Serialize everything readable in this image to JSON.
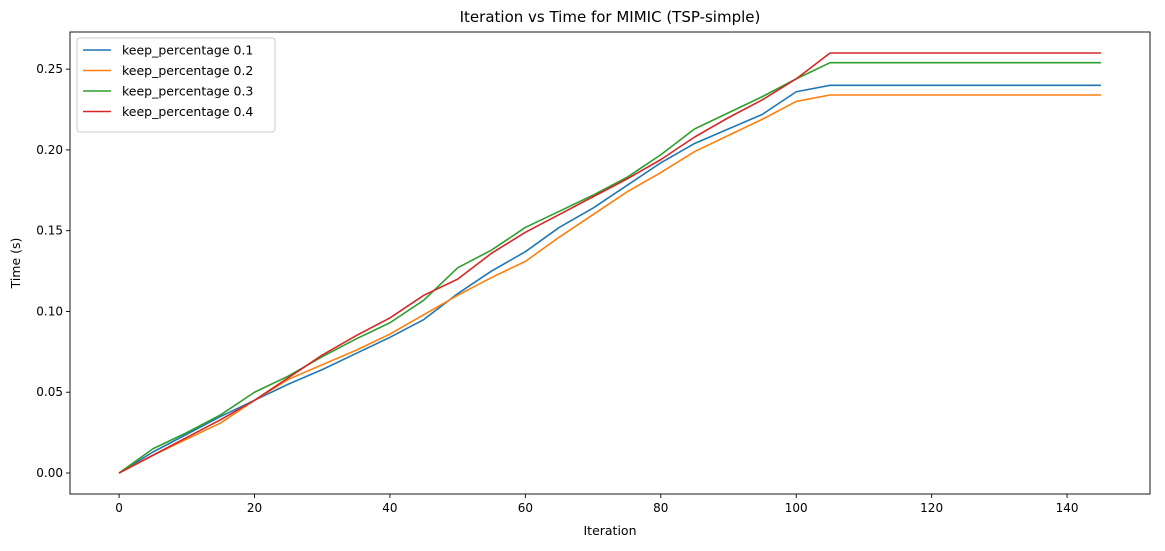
{
  "chart_data": {
    "type": "line",
    "title": "Iteration vs Time for MIMIC (TSP-simple)",
    "xlabel": "Iteration",
    "ylabel": "Time (s)",
    "xlim": [
      -7.25,
      152.25
    ],
    "ylim": [
      -0.013,
      0.273
    ],
    "xticks": [
      0,
      20,
      40,
      60,
      80,
      100,
      120,
      140
    ],
    "xtick_labels": [
      "0",
      "20",
      "40",
      "60",
      "80",
      "100",
      "120",
      "140"
    ],
    "yticks": [
      0.0,
      0.05,
      0.1,
      0.15,
      0.2,
      0.25
    ],
    "ytick_labels": [
      "0.00",
      "0.05",
      "0.10",
      "0.15",
      "0.20",
      "0.25"
    ],
    "grid": false,
    "legend_position": "top-left",
    "x": [
      0,
      5,
      10,
      15,
      20,
      25,
      30,
      35,
      40,
      45,
      50,
      55,
      60,
      65,
      70,
      75,
      80,
      85,
      90,
      95,
      100,
      105,
      110,
      115,
      120,
      125,
      130,
      135,
      140,
      145
    ],
    "series": [
      {
        "name": "keep_percentage 0.1",
        "color": "#1f77b4",
        "values": [
          0.0,
          0.013,
          0.024,
          0.035,
          0.045,
          0.055,
          0.064,
          0.074,
          0.084,
          0.095,
          0.111,
          0.125,
          0.137,
          0.152,
          0.164,
          0.178,
          0.192,
          0.204,
          0.213,
          0.222,
          0.236,
          0.24,
          0.24,
          0.24,
          0.24,
          0.24,
          0.24,
          0.24,
          0.24,
          0.24
        ]
      },
      {
        "name": "keep_percentage 0.2",
        "color": "#ff7f0e",
        "values": [
          0.0,
          0.011,
          0.021,
          0.031,
          0.045,
          0.058,
          0.067,
          0.076,
          0.086,
          0.098,
          0.11,
          0.121,
          0.131,
          0.146,
          0.16,
          0.174,
          0.186,
          0.199,
          0.209,
          0.219,
          0.23,
          0.234,
          0.234,
          0.234,
          0.234,
          0.234,
          0.234,
          0.234,
          0.234,
          0.234
        ]
      },
      {
        "name": "keep_percentage 0.3",
        "color": "#2ca02c",
        "values": [
          0.0,
          0.015,
          0.025,
          0.036,
          0.05,
          0.06,
          0.072,
          0.083,
          0.093,
          0.107,
          0.127,
          0.138,
          0.152,
          0.162,
          0.172,
          0.183,
          0.197,
          0.213,
          0.223,
          0.233,
          0.244,
          0.254,
          0.254,
          0.254,
          0.254,
          0.254,
          0.254,
          0.254,
          0.254,
          0.254
        ]
      },
      {
        "name": "keep_percentage 0.4",
        "color": "#d62728",
        "values": [
          0.0,
          0.011,
          0.022,
          0.033,
          0.045,
          0.059,
          0.073,
          0.085,
          0.096,
          0.11,
          0.12,
          0.136,
          0.149,
          0.16,
          0.171,
          0.182,
          0.194,
          0.208,
          0.22,
          0.231,
          0.244,
          0.26,
          0.26,
          0.26,
          0.26,
          0.26,
          0.26,
          0.26,
          0.26,
          0.26
        ]
      }
    ]
  }
}
